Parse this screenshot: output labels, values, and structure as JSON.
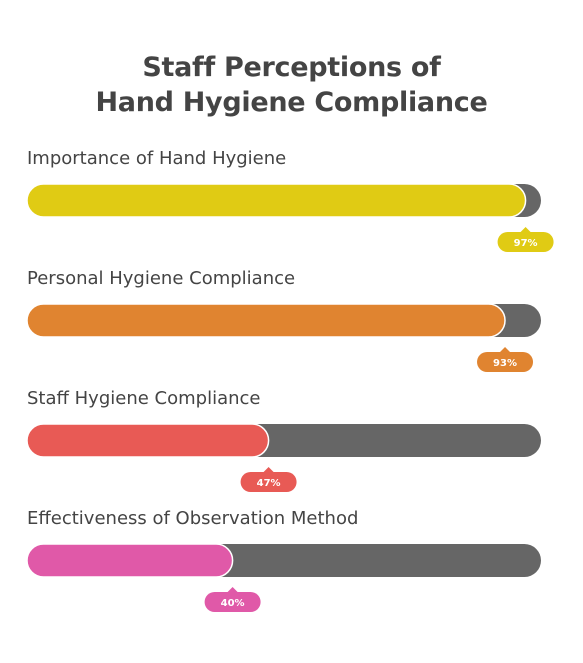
{
  "chart_data": {
    "type": "bar",
    "orientation": "horizontal",
    "title": [
      "Staff Perceptions of",
      "Hand Hygiene Compliance"
    ],
    "categories": [
      "Importance of Hand Hygiene",
      "Personal Hygiene Compliance",
      "Staff Hygiene Compliance",
      "Effectiveness of Observation Method"
    ],
    "values": [
      97,
      93,
      47,
      40
    ],
    "value_labels": [
      "97%",
      "93%",
      "47%",
      "40%"
    ],
    "xlim": [
      0,
      100
    ],
    "unit": "%",
    "colors": [
      "#e0cb14",
      "#e08430",
      "#e85a55",
      "#e059a8"
    ],
    "track_color": "#666666",
    "grid": false,
    "legend": "none"
  }
}
